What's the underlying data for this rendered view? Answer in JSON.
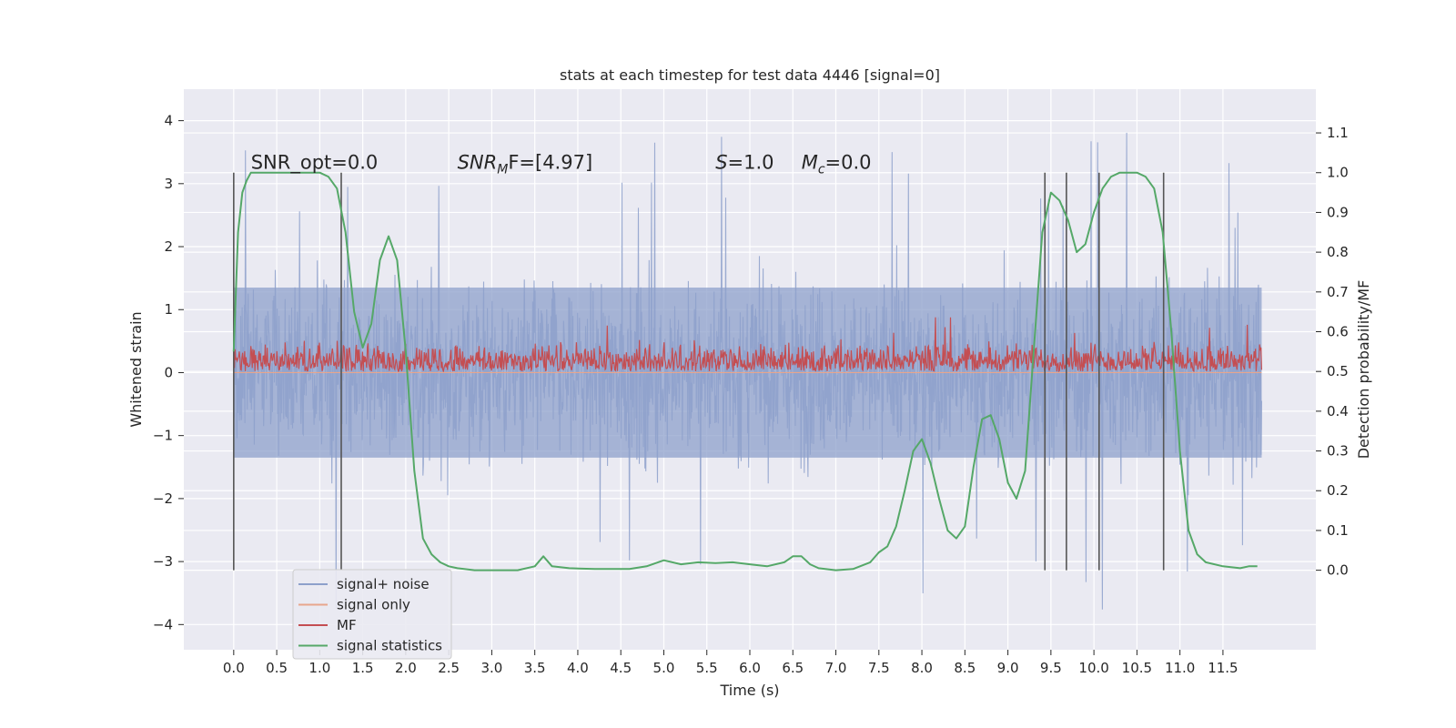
{
  "chart_data": {
    "type": "line",
    "title": "stats at each timestep for test data 4446 [signal=0]",
    "xlabel": "Time (s)",
    "ylabel_left": "Whitened strain",
    "ylabel_right": "Detection probability/MF",
    "xlim": [
      -0.58,
      12.58
    ],
    "ylim_left": [
      -4.4,
      4.5
    ],
    "ylim_right": [
      -0.2,
      1.21
    ],
    "x_ticks": [
      0.0,
      0.5,
      1.0,
      1.5,
      2.0,
      2.5,
      3.0,
      3.5,
      4.0,
      4.5,
      5.0,
      5.5,
      6.0,
      6.5,
      7.0,
      7.5,
      8.0,
      8.5,
      9.0,
      9.5,
      10.0,
      10.5,
      11.0,
      11.5
    ],
    "x_tick_labels": [
      "0.0",
      "0.5",
      "1.0",
      "1.5",
      "2.0",
      "2.5",
      "3.0",
      "3.5",
      "4.0",
      "4.5",
      "5.0",
      "5.5",
      "6.0",
      "6.5",
      "7.0",
      "7.5",
      "8.0",
      "8.5",
      "9.0",
      "9.5",
      "10.0",
      "10.5",
      "11.0",
      "11.5"
    ],
    "y_left_ticks": [
      -4,
      -3,
      -2,
      -1,
      0,
      1,
      2,
      3,
      4
    ],
    "y_left_tick_labels": [
      "−4",
      "−3",
      "−2",
      "−1",
      "0",
      "1",
      "2",
      "3",
      "4"
    ],
    "y_right_ticks": [
      0.0,
      0.1,
      0.2,
      0.3,
      0.4,
      0.5,
      0.6,
      0.7,
      0.8,
      0.9,
      1.0,
      1.1
    ],
    "y_right_tick_labels": [
      "0.0",
      "0.1",
      "0.2",
      "0.3",
      "0.4",
      "0.5",
      "0.6",
      "0.7",
      "0.8",
      "0.9",
      "1.0",
      "1.1"
    ],
    "grid": true,
    "legend": {
      "position": "lower-left",
      "entries": [
        {
          "name": "signal+ noise",
          "color": "#8da0cb"
        },
        {
          "name": "signal only",
          "color": "#e8a58c"
        },
        {
          "name": "MF",
          "color": "#c44e52"
        },
        {
          "name": "signal statistics",
          "color": "#55a868"
        }
      ]
    },
    "annotations": [
      {
        "text": "SNR_opt=0.0",
        "x": 0.2,
        "y_right": 1.01,
        "italic_prefix": "",
        "sub": "",
        "rest": "SNR_opt=0.0"
      },
      {
        "text": "SNR_MF=[4.97]",
        "x": 2.6,
        "y_right": 1.01,
        "italic_prefix": "SNR",
        "sub": "M",
        "rest": "F=[4.97]"
      },
      {
        "text": "S=1.0",
        "x": 5.6,
        "y_right": 1.01,
        "italic_prefix": "S",
        "sub": "",
        "rest": "=1.0"
      },
      {
        "text": "M_c=0.0",
        "x": 6.6,
        "y_right": 1.01,
        "italic_prefix": "M",
        "sub": "c",
        "rest": "=0.0"
      }
    ],
    "vertical_lines": {
      "x": [
        0.0,
        1.25,
        9.43,
        9.68,
        10.06,
        10.81
      ],
      "y_right_range": [
        0.0,
        1.0
      ],
      "color": "#555555"
    },
    "series": [
      {
        "name": "signal+ noise",
        "axis": "left",
        "color": "#8da0cb",
        "x_range": [
          0.0,
          11.95
        ],
        "typical_range": [
          -1.9,
          1.9
        ],
        "extreme_range": [
          -3.9,
          4.05
        ]
      },
      {
        "name": "signal only",
        "axis": "left",
        "color": "#e8a58c",
        "values": [
          0.0
        ]
      },
      {
        "name": "MF",
        "axis": "right",
        "color": "#c44e52",
        "x_range": [
          0.0,
          11.95
        ],
        "typical_range": [
          0.5,
          0.58
        ],
        "extreme_range": [
          0.5,
          0.64
        ]
      },
      {
        "name": "signal statistics",
        "axis": "right",
        "color": "#55a868",
        "x": [
          0.0,
          0.05,
          0.1,
          0.15,
          0.2,
          0.3,
          0.5,
          0.8,
          1.0,
          1.1,
          1.2,
          1.3,
          1.4,
          1.5,
          1.6,
          1.7,
          1.8,
          1.9,
          2.0,
          2.1,
          2.2,
          2.3,
          2.4,
          2.5,
          2.6,
          2.8,
          3.0,
          3.3,
          3.5,
          3.6,
          3.7,
          3.9,
          4.2,
          4.6,
          4.8,
          5.0,
          5.2,
          5.4,
          5.6,
          5.8,
          6.0,
          6.2,
          6.4,
          6.5,
          6.6,
          6.7,
          6.8,
          7.0,
          7.2,
          7.4,
          7.5,
          7.6,
          7.7,
          7.8,
          7.9,
          8.0,
          8.1,
          8.2,
          8.3,
          8.4,
          8.5,
          8.6,
          8.7,
          8.8,
          8.9,
          9.0,
          9.1,
          9.2,
          9.3,
          9.4,
          9.5,
          9.6,
          9.7,
          9.8,
          9.9,
          10.0,
          10.1,
          10.2,
          10.3,
          10.5,
          10.6,
          10.7,
          10.8,
          10.9,
          11.0,
          11.1,
          11.2,
          11.3,
          11.5,
          11.7,
          11.8,
          11.9
        ],
        "values": [
          0.55,
          0.85,
          0.95,
          0.98,
          1.0,
          1.0,
          1.0,
          1.0,
          1.0,
          0.99,
          0.96,
          0.85,
          0.65,
          0.56,
          0.62,
          0.78,
          0.84,
          0.78,
          0.55,
          0.25,
          0.08,
          0.04,
          0.02,
          0.01,
          0.005,
          0.0,
          0.0,
          0.0,
          0.01,
          0.035,
          0.01,
          0.005,
          0.003,
          0.003,
          0.01,
          0.025,
          0.015,
          0.02,
          0.018,
          0.02,
          0.015,
          0.01,
          0.02,
          0.035,
          0.035,
          0.015,
          0.005,
          0.0,
          0.003,
          0.02,
          0.045,
          0.06,
          0.11,
          0.2,
          0.3,
          0.33,
          0.27,
          0.18,
          0.1,
          0.08,
          0.11,
          0.26,
          0.38,
          0.39,
          0.33,
          0.22,
          0.18,
          0.25,
          0.55,
          0.85,
          0.95,
          0.93,
          0.88,
          0.8,
          0.82,
          0.9,
          0.96,
          0.99,
          1.0,
          1.0,
          0.99,
          0.96,
          0.85,
          0.6,
          0.3,
          0.1,
          0.04,
          0.02,
          0.01,
          0.005,
          0.01,
          0.01
        ]
      }
    ]
  }
}
